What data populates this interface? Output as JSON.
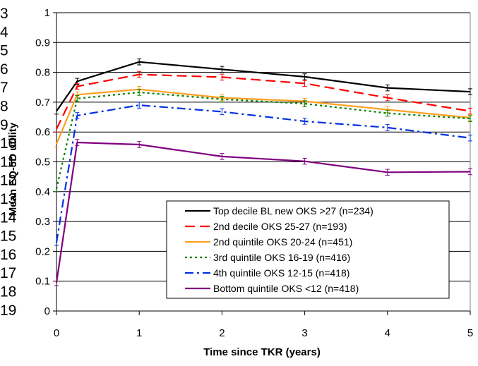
{
  "chart_data": {
    "type": "line",
    "title": "",
    "xlabel": "Time since TKR (years)",
    "ylabel": "Mean EQ-5D utility",
    "xlim": [
      0,
      5
    ],
    "ylim": [
      0,
      1
    ],
    "x_ticks": [
      "0",
      "1",
      "2",
      "3",
      "4",
      "5"
    ],
    "y_ticks": [
      "0",
      "0.1",
      "0.2",
      "0.3",
      "0.4",
      "0.5",
      "0.6",
      "0.7",
      "0.8",
      "0.9",
      "1"
    ],
    "grid": "horizontal",
    "legend_position": "bottom-right",
    "x": [
      0,
      0.25,
      1,
      2,
      3,
      4,
      5
    ],
    "series": [
      {
        "name": "Top decile BL new OKS >27 (n=234)",
        "color": "#000000",
        "style": "solid",
        "values": [
          0.67,
          0.77,
          0.835,
          0.81,
          0.785,
          0.748,
          0.735
        ]
      },
      {
        "name": "2nd decile OKS 25-27 (n=193)",
        "color": "#ff0000",
        "style": "dashed",
        "values": [
          0.61,
          0.753,
          0.793,
          0.784,
          0.763,
          0.715,
          0.67
        ]
      },
      {
        "name": "2nd quintile OKS 20-24 (n=451)",
        "color": "#ffa020",
        "style": "solid",
        "values": [
          0.56,
          0.725,
          0.743,
          0.715,
          0.703,
          0.675,
          0.648
        ]
      },
      {
        "name": "3rd quintile OKS 16-19 (n=416)",
        "color": "#008000",
        "style": "dotted",
        "values": [
          0.41,
          0.712,
          0.733,
          0.71,
          0.695,
          0.663,
          0.645
        ]
      },
      {
        "name": "4th quintile OKS 12-15 (n=418)",
        "color": "#0030e0",
        "style": "dashdot",
        "values": [
          0.23,
          0.655,
          0.69,
          0.668,
          0.636,
          0.615,
          0.58
        ]
      },
      {
        "name": "Bottom quintile OKS <12 (n=418)",
        "color": "#800080",
        "style": "solid",
        "values": [
          0.095,
          0.565,
          0.558,
          0.518,
          0.502,
          0.465,
          0.467
        ]
      }
    ],
    "error_bars_half_width": 0.01
  },
  "stray_labels": [
    "3",
    "4",
    "5",
    "6",
    "7",
    "8",
    "9",
    "10",
    "11",
    "12",
    "13",
    "14",
    "15",
    "16",
    "17",
    "18",
    "19"
  ]
}
